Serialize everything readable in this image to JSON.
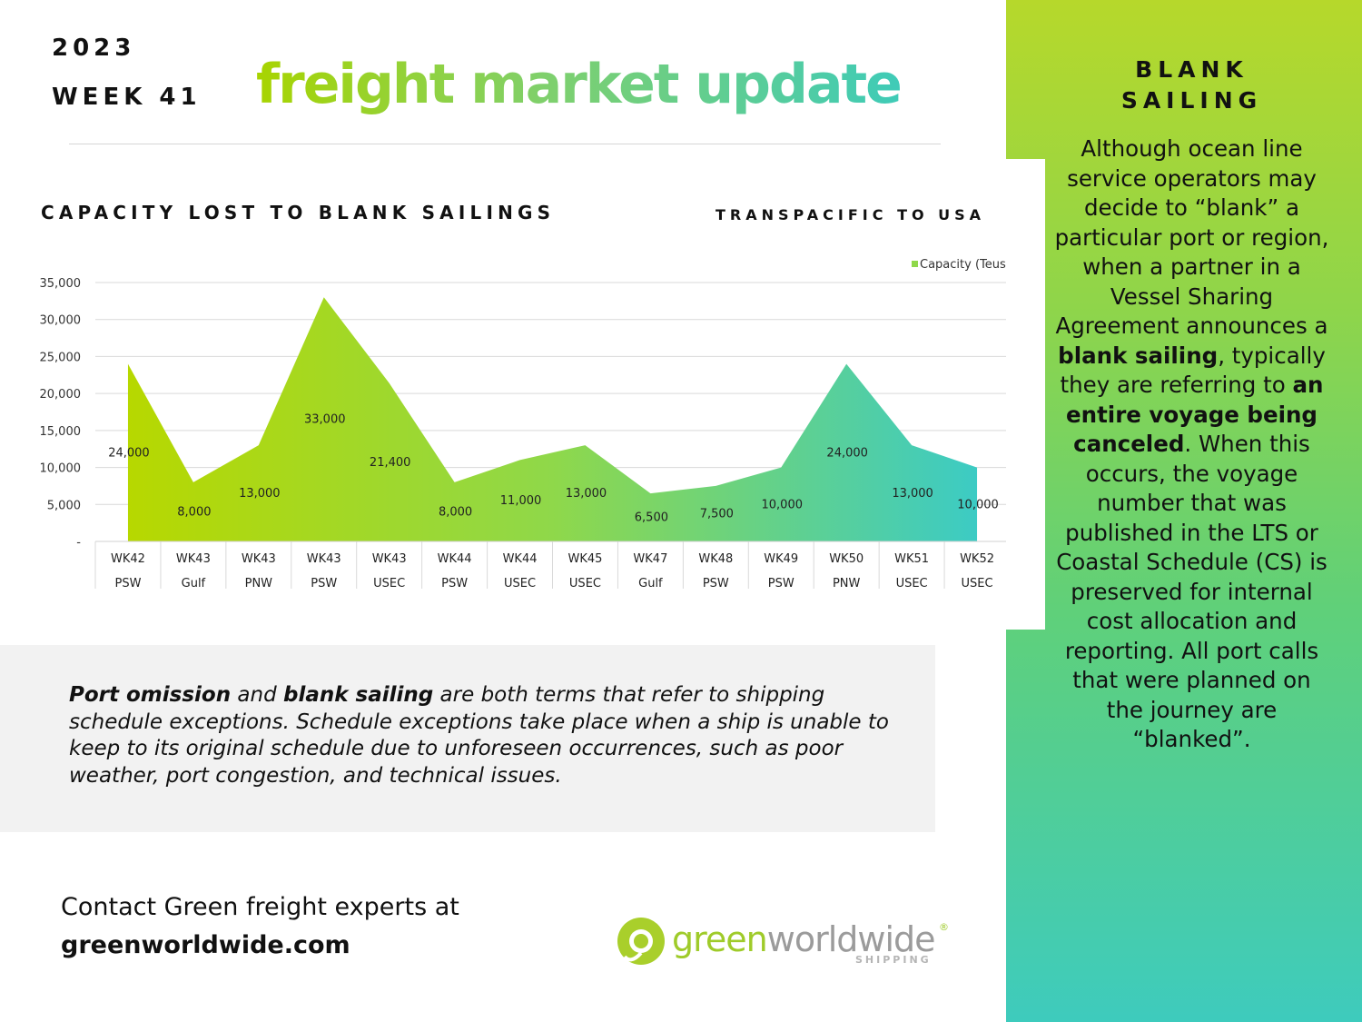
{
  "header": {
    "year": "2023",
    "week": "WEEK 41",
    "title": "freight market update"
  },
  "chart_data": {
    "type": "area",
    "title": "CAPACITY LOST TO BLANK SAILINGS",
    "subtitle": "TRANSPACIFIC TO USA",
    "legend": {
      "label": "Capacity (Teus)",
      "position": "top-right"
    },
    "categories": [
      {
        "week": "WK42",
        "region": "PSW"
      },
      {
        "week": "WK43",
        "region": "Gulf"
      },
      {
        "week": "WK43",
        "region": "PNW"
      },
      {
        "week": "WK43",
        "region": "PSW"
      },
      {
        "week": "WK43",
        "region": "USEC"
      },
      {
        "week": "WK44",
        "region": "PSW"
      },
      {
        "week": "WK44",
        "region": "USEC"
      },
      {
        "week": "WK45",
        "region": "USEC"
      },
      {
        "week": "WK47",
        "region": "Gulf"
      },
      {
        "week": "WK48",
        "region": "PSW"
      },
      {
        "week": "WK49",
        "region": "PSW"
      },
      {
        "week": "WK50",
        "region": "PNW"
      },
      {
        "week": "WK51",
        "region": "USEC"
      },
      {
        "week": "WK52",
        "region": "USEC"
      }
    ],
    "series": [
      {
        "name": "Capacity (Teus)",
        "values": [
          24000,
          8000,
          13000,
          33000,
          21400,
          8000,
          11000,
          13000,
          6500,
          7500,
          10000,
          24000,
          13000,
          10000
        ]
      }
    ],
    "data_labels": [
      "24,000",
      "8,000",
      "13,000",
      "33,000",
      "21,400",
      "8,000",
      "11,000",
      "13,000",
      "6,500",
      "7,500",
      "10,000",
      "24,000",
      "13,000",
      "10,000"
    ],
    "ylim": [
      0,
      35000
    ],
    "yticks": [
      0,
      5000,
      10000,
      15000,
      20000,
      25000,
      30000,
      35000
    ],
    "ytick_labels": [
      "-",
      "5,000",
      "10,000",
      "15,000",
      "20,000",
      "25,000",
      "30,000",
      "35,000"
    ],
    "grid": true,
    "colors": {
      "start": "#b7d800",
      "mid": "#8fd84a",
      "end": "#3ccbc4"
    }
  },
  "sidebar": {
    "heading_line1": "BLANK",
    "heading_line2": "SAILING",
    "p1": "Although ocean line service operators may decide to “blank” a particular port or region, when a partner in a Vessel Sharing Agreement announces a ",
    "b1": "blank sailing",
    "p2": ", typically they are referring to ",
    "b2": "an entire voyage being canceled",
    "p3": ". When this occurs, the voyage number that was published in the LTS or Coastal Schedule (CS) is preserved for internal cost allocation and reporting. All port calls that were planned on the journey are “blanked”."
  },
  "note": {
    "b1": "Port omission",
    "t1": " and ",
    "b2": "blank sailing",
    "t2": " are both terms that refer to shipping schedule exceptions. Schedule exceptions take place when a ship is unable to keep to its original schedule due to unforeseen occurrences, such as poor weather, port congestion, and technical issues."
  },
  "contact": {
    "line1": "Contact Green freight experts at",
    "line2": "greenworldwide.com"
  },
  "logo": {
    "word_green": "green",
    "word_grey": "worldwide",
    "reg": "®",
    "sub": "SHIPPING",
    "icon": "gww-logo-mark"
  }
}
